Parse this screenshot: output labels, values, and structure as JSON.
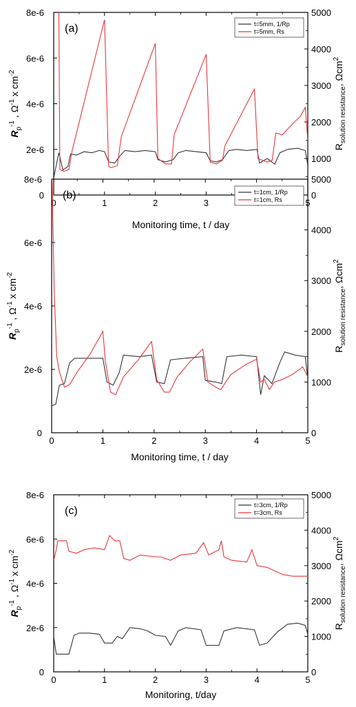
{
  "chart_data": [
    {
      "type": "line",
      "panel_label": "(a)",
      "xlabel": "Monitoring time, t / day",
      "ylabel_left": {
        "main": "R",
        "sub": "p",
        "sup": "-1",
        "rest": " , Ω",
        "sup2": "-1",
        "rest2": " x cm",
        "sup3": "-2"
      },
      "ylabel_right": {
        "main": "R",
        "sub": "solution resistance",
        "rest": ", Ωcm",
        "sup": "2"
      },
      "xlim": [
        0,
        5
      ],
      "ylim_left": [
        0,
        8e-06
      ],
      "ylim_right": [
        0,
        5000
      ],
      "x_ticks": [
        "0",
        "1",
        "2",
        "3",
        "4",
        "5"
      ],
      "y_ticks_left": [
        "0",
        "2e-6",
        "4e-6",
        "6e-6",
        "8e-6"
      ],
      "y_ticks_right": [
        "0",
        "1000",
        "2000",
        "3000",
        "4000",
        "5000"
      ],
      "legend_position": "top-right",
      "series": [
        {
          "name": "t=5mm, 1/Rp",
          "axis": "left",
          "color": "#333333",
          "points": [
            [
              0,
              7.5e-07
            ],
            [
              0.1,
              1.85e-06
            ],
            [
              0.18,
              1.1e-06
            ],
            [
              0.28,
              1.25e-06
            ],
            [
              0.33,
              1.8e-06
            ],
            [
              0.45,
              1.75e-06
            ],
            [
              0.6,
              1.9e-06
            ],
            [
              0.75,
              1.85e-06
            ],
            [
              0.9,
              1.95e-06
            ],
            [
              1.0,
              1.9e-06
            ],
            [
              1.08,
              1.45e-06
            ],
            [
              1.2,
              1.4e-06
            ],
            [
              1.3,
              1.7e-06
            ],
            [
              1.4,
              1.95e-06
            ],
            [
              1.6,
              1.9e-06
            ],
            [
              1.8,
              1.95e-06
            ],
            [
              2.0,
              1.9e-06
            ],
            [
              2.05,
              1.55e-06
            ],
            [
              2.2,
              1.45e-06
            ],
            [
              2.35,
              1.55e-06
            ],
            [
              2.45,
              1.85e-06
            ],
            [
              2.6,
              1.95e-06
            ],
            [
              2.8,
              1.9e-06
            ],
            [
              3.0,
              1.85e-06
            ],
            [
              3.08,
              1.5e-06
            ],
            [
              3.2,
              1.45e-06
            ],
            [
              3.32,
              1.55e-06
            ],
            [
              3.45,
              1.95e-06
            ],
            [
              3.6,
              2e-06
            ],
            [
              3.8,
              1.95e-06
            ],
            [
              4.0,
              2e-06
            ],
            [
              4.05,
              1.4e-06
            ],
            [
              4.2,
              1.6e-06
            ],
            [
              4.35,
              1.35e-06
            ],
            [
              4.45,
              1.85e-06
            ],
            [
              4.6,
              2e-06
            ],
            [
              4.8,
              2.05e-06
            ],
            [
              4.95,
              1.95e-06
            ],
            [
              5.0,
              1.3e-06
            ]
          ]
        },
        {
          "name": "t=5mm, Rs",
          "axis": "right",
          "color": "#e8353a",
          "points": [
            [
              0.1,
              5200
            ],
            [
              0.12,
              700
            ],
            [
              0.2,
              650
            ],
            [
              0.3,
              700
            ],
            [
              0.36,
              1200
            ],
            [
              1.0,
              4800
            ],
            [
              1.08,
              800
            ],
            [
              1.12,
              750
            ],
            [
              1.25,
              800
            ],
            [
              1.33,
              1600
            ],
            [
              2.0,
              4150
            ],
            [
              2.05,
              1000
            ],
            [
              2.2,
              850
            ],
            [
              2.32,
              850
            ],
            [
              2.37,
              1650
            ],
            [
              3.0,
              3850
            ],
            [
              3.08,
              900
            ],
            [
              3.2,
              850
            ],
            [
              3.32,
              950
            ],
            [
              3.37,
              1350
            ],
            [
              3.95,
              2900
            ],
            [
              4.02,
              1000
            ],
            [
              4.2,
              900
            ],
            [
              4.3,
              950
            ],
            [
              4.37,
              1700
            ],
            [
              4.5,
              1650
            ],
            [
              4.7,
              1950
            ],
            [
              4.85,
              2150
            ],
            [
              4.95,
              2400
            ],
            [
              5.0,
              1500
            ]
          ]
        }
      ]
    },
    {
      "type": "line",
      "panel_label": "(b)",
      "xlabel": "Monitoring time, t / day",
      "ylabel_left": {
        "main": "R",
        "sub": "p",
        "sup": "-1",
        "rest": " , Ω",
        "sup2": "-1",
        "rest2": " x cm",
        "sup3": "-2"
      },
      "ylabel_right": {
        "main": "R",
        "sub": "solution resistance",
        "rest": ", Ωcm",
        "sup": "2"
      },
      "xlim": [
        0,
        5
      ],
      "ylim_left": [
        0,
        8e-06
      ],
      "ylim_right": [
        0,
        5000
      ],
      "x_ticks": [
        "0",
        "1",
        "2",
        "3",
        "4",
        "5"
      ],
      "y_ticks_left": [
        "0",
        "2e-6",
        "4e-6",
        "6e-6",
        "8e-6"
      ],
      "y_ticks_right": [
        "0",
        "1000",
        "2000",
        "3000",
        "4000",
        "5000"
      ],
      "legend_position": "top-right",
      "series": [
        {
          "name": "t=1cm, 1/Rp",
          "axis": "left",
          "color": "#333333",
          "points": [
            [
              0,
              8.5e-07
            ],
            [
              0.08,
              9e-07
            ],
            [
              0.15,
              1.5e-06
            ],
            [
              0.25,
              1.55e-06
            ],
            [
              0.35,
              2.2e-06
            ],
            [
              0.45,
              2.35e-06
            ],
            [
              0.7,
              2.35e-06
            ],
            [
              1.0,
              2.35e-06
            ],
            [
              1.08,
              1.6e-06
            ],
            [
              1.2,
              1.5e-06
            ],
            [
              1.32,
              1.9e-06
            ],
            [
              1.4,
              2.45e-06
            ],
            [
              1.7,
              2.4e-06
            ],
            [
              1.95,
              2.45e-06
            ],
            [
              2.05,
              1.6e-06
            ],
            [
              2.2,
              1.55e-06
            ],
            [
              2.32,
              2.3e-06
            ],
            [
              2.6,
              2.35e-06
            ],
            [
              2.95,
              2.4e-06
            ],
            [
              3.0,
              1.65e-06
            ],
            [
              3.2,
              1.6e-06
            ],
            [
              3.32,
              1.55e-06
            ],
            [
              3.42,
              2.4e-06
            ],
            [
              3.7,
              2.45e-06
            ],
            [
              4.0,
              2.4e-06
            ],
            [
              4.08,
              1.2e-06
            ],
            [
              4.15,
              1.8e-06
            ],
            [
              4.3,
              1.55e-06
            ],
            [
              4.45,
              2.2e-06
            ],
            [
              4.55,
              2.55e-06
            ],
            [
              4.75,
              2.45e-06
            ],
            [
              4.95,
              2.4e-06
            ],
            [
              5.0,
              1.7e-06
            ]
          ]
        },
        {
          "name": "t=1cm, Rs",
          "axis": "right",
          "color": "#e8353a",
          "points": [
            [
              0.01,
              5000
            ],
            [
              0.05,
              2800
            ],
            [
              0.1,
              1500
            ],
            [
              0.15,
              1200
            ],
            [
              0.25,
              900
            ],
            [
              0.35,
              950
            ],
            [
              0.5,
              1200
            ],
            [
              0.75,
              1550
            ],
            [
              1.0,
              2000
            ],
            [
              1.05,
              1400
            ],
            [
              1.15,
              800
            ],
            [
              1.25,
              750
            ],
            [
              1.4,
              1100
            ],
            [
              1.7,
              1450
            ],
            [
              1.95,
              1800
            ],
            [
              2.05,
              1050
            ],
            [
              2.2,
              800
            ],
            [
              2.3,
              800
            ],
            [
              2.45,
              1100
            ],
            [
              2.7,
              1400
            ],
            [
              2.95,
              1650
            ],
            [
              3.05,
              1000
            ],
            [
              3.2,
              900
            ],
            [
              3.3,
              850
            ],
            [
              3.5,
              1150
            ],
            [
              3.8,
              1350
            ],
            [
              4.0,
              1450
            ],
            [
              4.08,
              1000
            ],
            [
              4.15,
              1050
            ],
            [
              4.25,
              850
            ],
            [
              4.35,
              1000
            ],
            [
              4.5,
              1050
            ],
            [
              4.7,
              1150
            ],
            [
              4.9,
              1300
            ],
            [
              5.0,
              1100
            ]
          ]
        }
      ]
    },
    {
      "type": "line",
      "panel_label": "(c)",
      "xlabel": "Monitoring, t/day",
      "ylabel_left": {
        "main": "R",
        "sub": "p",
        "sup": "-1",
        "rest": " , Ω",
        "sup2": "-1",
        "rest2": " x cm",
        "sup3": "-2"
      },
      "ylabel_right": {
        "main": "R",
        "sub": "solution resistance",
        "rest": ", Ωcm",
        "sup": "2"
      },
      "xlim": [
        0,
        5
      ],
      "ylim_left": [
        0,
        8e-06
      ],
      "ylim_right": [
        0,
        5000
      ],
      "x_ticks": [
        "0",
        "1",
        "2",
        "3",
        "4",
        "5"
      ],
      "y_ticks_left": [
        "0",
        "2e-6",
        "4e-6",
        "6e-6",
        "8e-6"
      ],
      "y_ticks_right": [
        "0",
        "1000",
        "2000",
        "3000",
        "4000",
        "5000"
      ],
      "legend_position": "top-right",
      "series": [
        {
          "name": "t=3cm, 1/Rp",
          "axis": "left",
          "color": "#333333",
          "points": [
            [
              0,
              1.6e-06
            ],
            [
              0.05,
              8e-07
            ],
            [
              0.15,
              8e-07
            ],
            [
              0.3,
              8e-07
            ],
            [
              0.4,
              1.65e-06
            ],
            [
              0.5,
              1.75e-06
            ],
            [
              0.7,
              1.75e-06
            ],
            [
              0.9,
              1.7e-06
            ],
            [
              1.0,
              1.3e-06
            ],
            [
              1.15,
              1.3e-06
            ],
            [
              1.25,
              1.6e-06
            ],
            [
              1.35,
              1.5e-06
            ],
            [
              1.5,
              2e-06
            ],
            [
              1.7,
              1.95e-06
            ],
            [
              1.85,
              1.85e-06
            ],
            [
              2.0,
              1.65e-06
            ],
            [
              2.2,
              1.6e-06
            ],
            [
              2.3,
              1.2e-06
            ],
            [
              2.45,
              1.85e-06
            ],
            [
              2.6,
              2e-06
            ],
            [
              2.9,
              1.9e-06
            ],
            [
              3.0,
              1.2e-06
            ],
            [
              3.25,
              1.2e-06
            ],
            [
              3.35,
              1.85e-06
            ],
            [
              3.6,
              2e-06
            ],
            [
              3.95,
              1.9e-06
            ],
            [
              4.05,
              1.2e-06
            ],
            [
              4.2,
              1.3e-06
            ],
            [
              4.4,
              1.8e-06
            ],
            [
              4.6,
              2.15e-06
            ],
            [
              4.8,
              2.2e-06
            ],
            [
              4.95,
              2.1e-06
            ],
            [
              5.0,
              1.7e-06
            ]
          ]
        },
        {
          "name": "t=3cm, Rs",
          "axis": "right",
          "color": "#e8353a",
          "points": [
            [
              0,
              3150
            ],
            [
              0.05,
              3450
            ],
            [
              0.08,
              3700
            ],
            [
              0.25,
              3700
            ],
            [
              0.3,
              3400
            ],
            [
              0.45,
              3350
            ],
            [
              0.6,
              3450
            ],
            [
              0.8,
              3500
            ],
            [
              1.0,
              3450
            ],
            [
              1.1,
              3850
            ],
            [
              1.2,
              3700
            ],
            [
              1.3,
              3700
            ],
            [
              1.38,
              3200
            ],
            [
              1.5,
              3150
            ],
            [
              1.7,
              3300
            ],
            [
              2.0,
              3250
            ],
            [
              2.1,
              3250
            ],
            [
              2.2,
              3200
            ],
            [
              2.3,
              3150
            ],
            [
              2.5,
              3300
            ],
            [
              2.8,
              3350
            ],
            [
              2.95,
              3650
            ],
            [
              3.05,
              3300
            ],
            [
              3.25,
              3450
            ],
            [
              3.3,
              3700
            ],
            [
              3.35,
              3250
            ],
            [
              3.5,
              3150
            ],
            [
              3.8,
              3100
            ],
            [
              3.9,
              3450
            ],
            [
              4.0,
              3000
            ],
            [
              4.2,
              2950
            ],
            [
              4.5,
              2750
            ],
            [
              4.7,
              2700
            ],
            [
              5.0,
              2700
            ]
          ]
        }
      ]
    }
  ]
}
